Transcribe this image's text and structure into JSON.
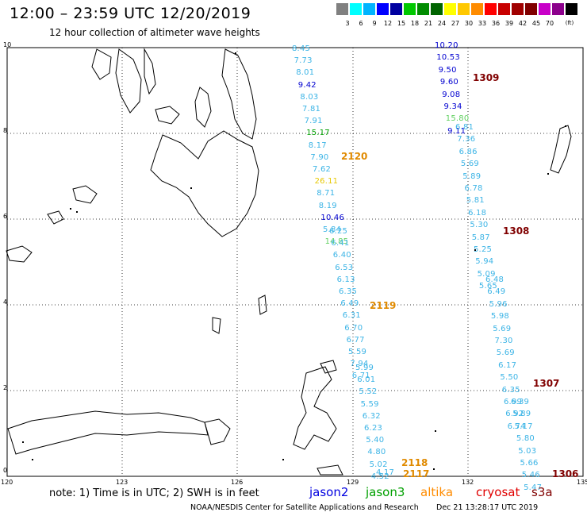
{
  "header": {
    "title": "12:00 – 23:59 UTC 12/20/2019",
    "subtitle": "12 hour collection of altimeter wave heights"
  },
  "legend": {
    "colors": [
      "#808080",
      "#00ffff",
      "#00b4ff",
      "#0000ff",
      "#0000a0",
      "#00c800",
      "#008c00",
      "#006400",
      "#ffff00",
      "#ffc800",
      "#ff8c00",
      "#ff0000",
      "#c80000",
      "#a00000",
      "#800000",
      "#c800c8",
      "#8c008c",
      "#000000"
    ],
    "labels": [
      "3",
      "6",
      "9",
      "12",
      "15",
      "18",
      "21",
      "24",
      "27",
      "30",
      "33",
      "36",
      "39",
      "42",
      "45",
      "70"
    ],
    "unit": "(ft)"
  },
  "axes": {
    "lat_ticks": [
      "10",
      "8",
      "6",
      "4",
      "2",
      "0"
    ],
    "lon_ticks": [
      "120",
      "123",
      "126",
      "129",
      "132",
      "135"
    ]
  },
  "tracks": [
    {
      "id": "2120",
      "color": "#e08a00",
      "values": [
        {
          "v": "8.45",
          "c": "#3cb4e6"
        },
        {
          "v": "7.73",
          "c": "#3cb4e6"
        },
        {
          "v": "8.01",
          "c": "#3cb4e6"
        },
        {
          "v": "9.42",
          "c": "#0000d0"
        },
        {
          "v": "8.03",
          "c": "#3cb4e6"
        },
        {
          "v": "7.81",
          "c": "#3cb4e6"
        },
        {
          "v": "7.91",
          "c": "#3cb4e6"
        },
        {
          "v": "15.17",
          "c": "#00a000"
        },
        {
          "v": "8.17",
          "c": "#3cb4e6"
        },
        {
          "v": "7.90",
          "c": "#3cb4e6"
        },
        {
          "v": "7.62",
          "c": "#3cb4e6"
        },
        {
          "v": "26.11",
          "c": "#e6c800"
        },
        {
          "v": "8.71",
          "c": "#3cb4e6"
        },
        {
          "v": "8.19",
          "c": "#3cb4e6"
        },
        {
          "v": "10.46",
          "c": "#0000d0"
        },
        {
          "v": "5.84",
          "c": "#3cb4e6"
        },
        {
          "v": "14.85",
          "c": "#60d060"
        }
      ]
    },
    {
      "id": "2119",
      "color": "#e08a00",
      "values": [
        {
          "v": "6.25",
          "c": "#3cb4e6"
        },
        {
          "v": "6.41",
          "c": "#3cb4e6"
        },
        {
          "v": "6.40",
          "c": "#3cb4e6"
        },
        {
          "v": "6.53",
          "c": "#3cb4e6"
        },
        {
          "v": "6.13",
          "c": "#3cb4e6"
        },
        {
          "v": "6.35",
          "c": "#3cb4e6"
        },
        {
          "v": "6.49",
          "c": "#3cb4e6"
        },
        {
          "v": "6.31",
          "c": "#3cb4e6"
        },
        {
          "v": "6.70",
          "c": "#3cb4e6"
        },
        {
          "v": "6.77",
          "c": "#3cb4e6"
        },
        {
          "v": "5.59",
          "c": "#3cb4e6"
        },
        {
          "v": "7.94",
          "c": "#3cb4e6"
        },
        {
          "v": "6.71",
          "c": "#3cb4e6"
        }
      ]
    },
    {
      "id": "2118",
      "color": "#e08a00",
      "values": [
        {
          "v": "5.99",
          "c": "#3cb4e6"
        },
        {
          "v": "6.01",
          "c": "#3cb4e6"
        },
        {
          "v": "5.52",
          "c": "#3cb4e6"
        },
        {
          "v": "5.59",
          "c": "#3cb4e6"
        },
        {
          "v": "6.32",
          "c": "#3cb4e6"
        },
        {
          "v": "6.23",
          "c": "#3cb4e6"
        },
        {
          "v": "5.40",
          "c": "#3cb4e6"
        },
        {
          "v": "4.80",
          "c": "#3cb4e6"
        },
        {
          "v": "5.02",
          "c": "#3cb4e6"
        },
        {
          "v": "4.52",
          "c": "#3cb4e6"
        }
      ]
    },
    {
      "id": "2117",
      "color": "#e08a00",
      "values": [
        {
          "v": "4.17",
          "c": "#3cb4e6"
        }
      ]
    },
    {
      "id": "1309",
      "color": "#800000",
      "values": [
        {
          "v": "10.20",
          "c": "#0000d0"
        },
        {
          "v": "10.53",
          "c": "#0000d0"
        },
        {
          "v": "9.50",
          "c": "#0000d0"
        },
        {
          "v": "9.60",
          "c": "#0000d0"
        },
        {
          "v": "9.08",
          "c": "#0000d0"
        },
        {
          "v": "9.34",
          "c": "#0000d0"
        },
        {
          "v": "15.80",
          "c": "#60d060"
        },
        {
          "v": "9.11",
          "c": "#0000d0"
        }
      ]
    },
    {
      "id": "1308",
      "color": "#800000",
      "values": [
        {
          "v": "6.81",
          "c": "#3cb4e6"
        },
        {
          "v": "7.36",
          "c": "#3cb4e6"
        },
        {
          "v": "6.86",
          "c": "#3cb4e6"
        },
        {
          "v": "5.69",
          "c": "#3cb4e6"
        },
        {
          "v": "5.89",
          "c": "#3cb4e6"
        },
        {
          "v": "6.78",
          "c": "#3cb4e6"
        },
        {
          "v": "5.81",
          "c": "#3cb4e6"
        },
        {
          "v": "6.18",
          "c": "#3cb4e6"
        },
        {
          "v": "5.30",
          "c": "#3cb4e6"
        },
        {
          "v": "5.87",
          "c": "#3cb4e6"
        },
        {
          "v": "5.25",
          "c": "#3cb4e6"
        },
        {
          "v": "5.94",
          "c": "#3cb4e6"
        },
        {
          "v": "5.09",
          "c": "#3cb4e6"
        },
        {
          "v": "5.65",
          "c": "#3cb4e6"
        }
      ]
    },
    {
      "id": "1307",
      "color": "#800000",
      "values": [
        {
          "v": "6.48",
          "c": "#3cb4e6"
        },
        {
          "v": "6.49",
          "c": "#3cb4e6"
        },
        {
          "v": "5.96",
          "c": "#3cb4e6"
        },
        {
          "v": "5.98",
          "c": "#3cb4e6"
        },
        {
          "v": "5.69",
          "c": "#3cb4e6"
        },
        {
          "v": "7.30",
          "c": "#3cb4e6"
        },
        {
          "v": "5.69",
          "c": "#3cb4e6"
        },
        {
          "v": "6.17",
          "c": "#3cb4e6"
        },
        {
          "v": "5.50",
          "c": "#3cb4e6"
        },
        {
          "v": "6.35",
          "c": "#3cb4e6"
        },
        {
          "v": "6.99",
          "c": "#3cb4e6"
        },
        {
          "v": "6.92",
          "c": "#3cb4e6"
        },
        {
          "v": "6.74",
          "c": "#3cb4e6"
        }
      ]
    },
    {
      "id": "1306",
      "color": "#800000",
      "values": [
        {
          "v": "6.39",
          "c": "#3cb4e6"
        },
        {
          "v": "5.89",
          "c": "#3cb4e6"
        },
        {
          "v": "5.17",
          "c": "#3cb4e6"
        },
        {
          "v": "5.80",
          "c": "#3cb4e6"
        },
        {
          "v": "5.03",
          "c": "#3cb4e6"
        },
        {
          "v": "5.66",
          "c": "#3cb4e6"
        },
        {
          "v": "5.46",
          "c": "#3cb4e6"
        },
        {
          "v": "5.47",
          "c": "#3cb4e6"
        }
      ]
    }
  ],
  "footer": {
    "note": "note:  1) Time is in UTC;  2) SWH is in feet",
    "satellites": [
      {
        "name": "jason2",
        "color": "#0000e0"
      },
      {
        "name": "jason3",
        "color": "#00a000"
      },
      {
        "name": "altika",
        "color": "#ff8c00"
      },
      {
        "name": "cryosat",
        "color": "#e00000"
      },
      {
        "name": "s3a",
        "color": "#800000"
      }
    ],
    "credit": "NOAA/NESDIS Center for Satellite Applications and Research",
    "timestamp": "Dec 21 13:28:17 UTC 2019"
  }
}
